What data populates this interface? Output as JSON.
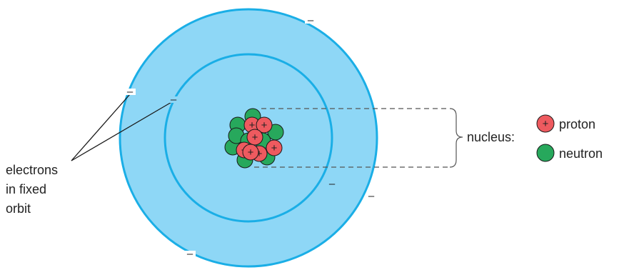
{
  "labels": {
    "electrons": [
      "electrons",
      "in fixed",
      "orbit"
    ],
    "nucleus": "nucleus:",
    "proton": "proton",
    "neutron": "neutron"
  },
  "symbols": {
    "electron_sign": "–",
    "proton_sign": "+"
  },
  "colors": {
    "outer_shell": "#8ed7f6",
    "orbit_line": "#1aaee6",
    "proton_fill": "#ee5a5f",
    "neutron_fill": "#27a85c",
    "outline": "#1a1a1a",
    "bracket": "#555555",
    "text": "#222222"
  },
  "icons": {
    "proton_legend": "proton-icon",
    "neutron_legend": "neutron-icon"
  },
  "counts": {
    "electrons": 6,
    "protons": 7,
    "neutrons": 9
  }
}
